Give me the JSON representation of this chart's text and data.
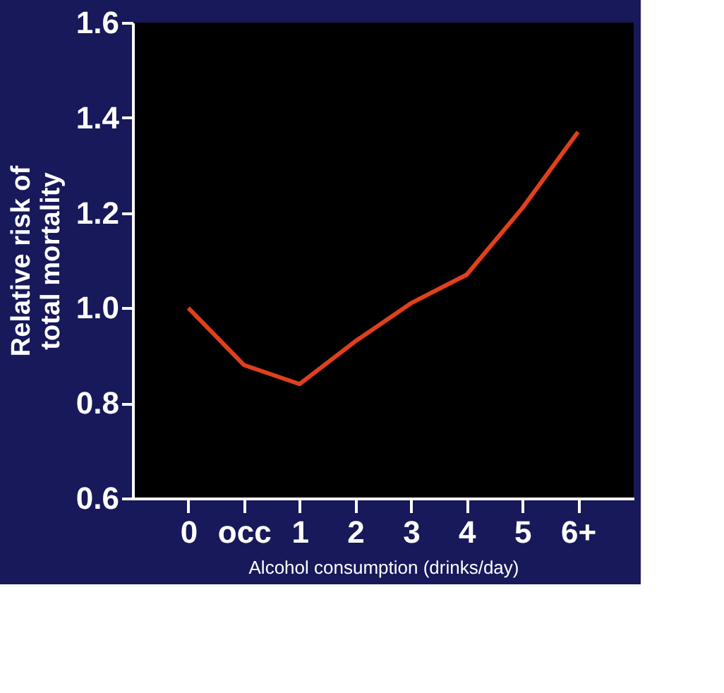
{
  "chart_data": {
    "type": "line",
    "xlabel": "Alcohol consumption (drinks/day)",
    "ylabel": "Relative risk of total mortality",
    "categories": [
      "0",
      "occ",
      "1",
      "2",
      "3",
      "4",
      "5",
      "6+"
    ],
    "series": [
      {
        "color": "#e0401c",
        "values": [
          1.0,
          0.88,
          0.84,
          0.93,
          1.01,
          1.07,
          1.21,
          1.37
        ]
      }
    ],
    "ylim": [
      0.6,
      1.6
    ],
    "yticks": [
      {
        "value": 0.6,
        "label": "0.6"
      },
      {
        "value": 0.8,
        "label": "0.8"
      },
      {
        "value": 1.0,
        "label": "1.0"
      },
      {
        "value": 1.2,
        "label": "1.2"
      },
      {
        "value": 1.4,
        "label": "1.4"
      },
      {
        "value": 1.6,
        "label": "1.6"
      }
    ],
    "grid": false,
    "marker": "none",
    "line_style": "solid"
  }
}
